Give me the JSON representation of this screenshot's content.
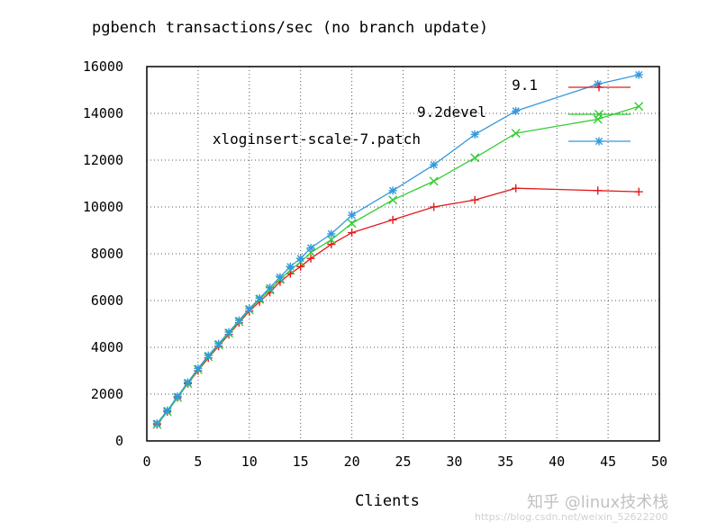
{
  "chart_data": {
    "type": "line",
    "title": "pgbench transactions/sec (no branch update)",
    "xlabel": "Clients",
    "ylabel": "",
    "xlim": [
      0,
      50
    ],
    "ylim": [
      0,
      16000
    ],
    "x_ticks": [
      0,
      5,
      10,
      15,
      20,
      25,
      30,
      35,
      40,
      45,
      50
    ],
    "y_ticks": [
      0,
      2000,
      4000,
      6000,
      8000,
      10000,
      12000,
      14000,
      16000
    ],
    "grid": true,
    "legend_position": "top-right",
    "series": [
      {
        "name": "9.1",
        "color": "#e41a1c",
        "marker": "plus",
        "x": [
          1,
          2,
          3,
          4,
          5,
          6,
          7,
          8,
          9,
          10,
          11,
          12,
          13,
          14,
          15,
          16,
          18,
          20,
          24,
          28,
          32,
          36,
          44,
          48
        ],
        "y": [
          700,
          1250,
          1850,
          2450,
          3000,
          3550,
          4050,
          4550,
          5050,
          5550,
          5950,
          6350,
          6800,
          7150,
          7450,
          7800,
          8400,
          8900,
          9450,
          10000,
          10300,
          10800,
          10700,
          10650
        ]
      },
      {
        "name": "9.2devel",
        "color": "#33cc33",
        "marker": "cross",
        "x": [
          1,
          2,
          3,
          4,
          5,
          6,
          7,
          8,
          9,
          10,
          11,
          12,
          13,
          14,
          15,
          16,
          18,
          20,
          24,
          28,
          32,
          36,
          44,
          48
        ],
        "y": [
          700,
          1250,
          1850,
          2450,
          3050,
          3600,
          4100,
          4600,
          5100,
          5600,
          6050,
          6450,
          6900,
          7300,
          7650,
          8050,
          8600,
          9300,
          10300,
          11100,
          12100,
          13150,
          13750,
          14300
        ]
      },
      {
        "name": "xloginsert-scale-7.patch",
        "color": "#3399dd",
        "marker": "star",
        "x": [
          1,
          2,
          3,
          4,
          5,
          6,
          7,
          8,
          9,
          10,
          11,
          12,
          13,
          14,
          15,
          16,
          18,
          20,
          24,
          28,
          32,
          36,
          44,
          48
        ],
        "y": [
          750,
          1300,
          1900,
          2500,
          3100,
          3650,
          4150,
          4650,
          5150,
          5650,
          6100,
          6550,
          7000,
          7450,
          7800,
          8250,
          8850,
          9650,
          10700,
          11800,
          13100,
          14100,
          15250,
          15650
        ]
      }
    ]
  },
  "watermark": {
    "brand": "知乎 @linux技术栈",
    "url": "https://blog.csdn.net/weixin_52622200"
  }
}
